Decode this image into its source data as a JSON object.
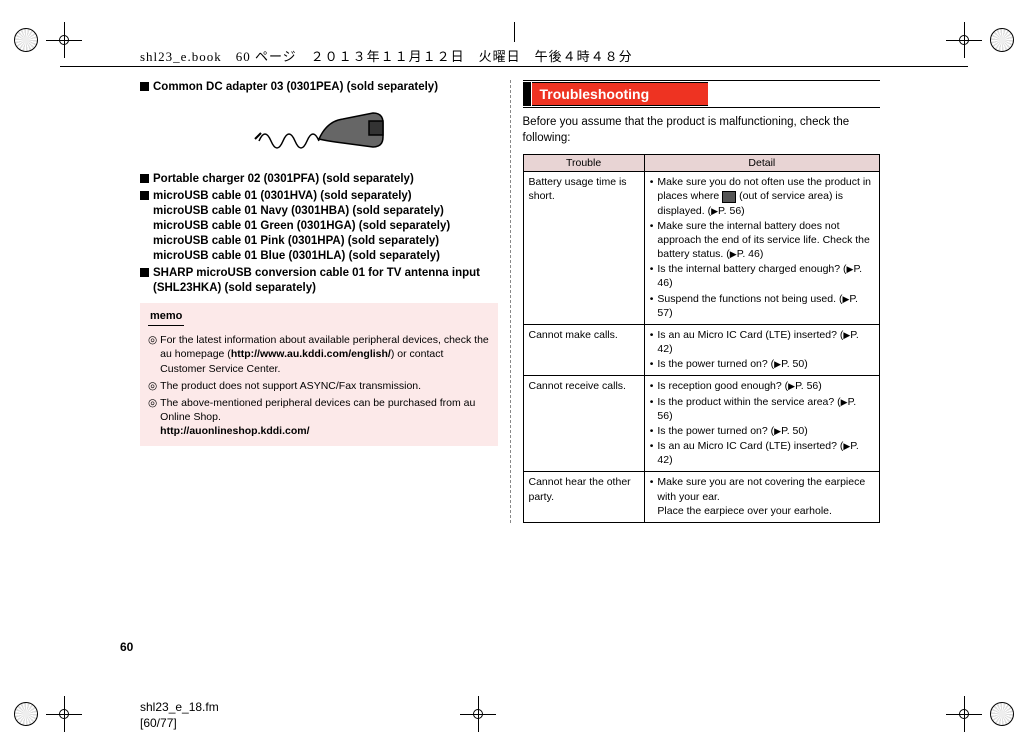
{
  "header_text": "shl23_e.book　60 ページ　２０１３年１１月１２日　火曜日　午後４時４８分",
  "accessories": {
    "items": [
      {
        "marker": true,
        "text": "Common DC adapter 03 (0301PEA) (sold separately)"
      },
      {
        "marker": true,
        "text": "Portable charger 02 (0301PFA) (sold separately)"
      },
      {
        "marker": true,
        "text": "microUSB cable 01 (0301HVA) (sold separately)\nmicroUSB cable 01 Navy (0301HBA) (sold separately)\nmicroUSB cable 01 Green (0301HGA) (sold separately)\nmicroUSB cable 01 Pink (0301HPA) (sold separately)\nmicroUSB cable 01 Blue (0301HLA) (sold separately)"
      },
      {
        "marker": true,
        "text": "SHARP microUSB conversion cable 01 for TV antenna input (SHL23HKA) (sold separately)"
      }
    ]
  },
  "memo": {
    "label": "memo",
    "lines": [
      "For the latest information about available peripheral devices, check the au homepage (http://www.au.kddi.com/english/) or contact Customer Service Center.",
      "The product does not support ASYNC/Fax transmission.",
      "The above-mentioned peripheral devices can be purchased from au Online Shop.\nhttp://auonlineshop.kddi.com/"
    ]
  },
  "section_title": "Troubleshooting",
  "intro": "Before you assume that the product is malfunctioning, check the following:",
  "table": {
    "headers": [
      "Trouble",
      "Detail"
    ],
    "rows": [
      {
        "trouble": "Battery usage time is short.",
        "details": [
          "Make sure you do not often use the product in places where  📶  (out of service area) is displayed. (▶P. 56)",
          "Make sure the internal battery does not approach the end of its service life. Check the battery status. (▶P. 46)",
          "Is the internal battery charged enough? (▶P. 46)",
          "Suspend the functions not being used. (▶P. 57)"
        ]
      },
      {
        "trouble": "Cannot make calls.",
        "details": [
          "Is an au Micro IC Card (LTE) inserted? (▶P. 42)",
          "Is the power turned on? (▶P. 50)"
        ]
      },
      {
        "trouble": "Cannot receive calls.",
        "details": [
          "Is reception good enough? (▶P. 56)",
          "Is the product within the service area? (▶P. 56)",
          "Is the power turned on? (▶P. 50)",
          "Is an au Micro IC Card (LTE) inserted? (▶P. 42)"
        ]
      },
      {
        "trouble": "Cannot hear the other party.",
        "details": [
          "Make sure you are not covering the earpiece with your ear.\nPlace the earpiece over your earhole."
        ]
      }
    ]
  },
  "page_number": "60",
  "footer_file": "shl23_e_18.fm",
  "footer_page": "[60/77]",
  "colors": {
    "memo_bg": "#fce9e9",
    "section_bg": "#ee3322",
    "table_header_bg": "#e8d4d4"
  }
}
